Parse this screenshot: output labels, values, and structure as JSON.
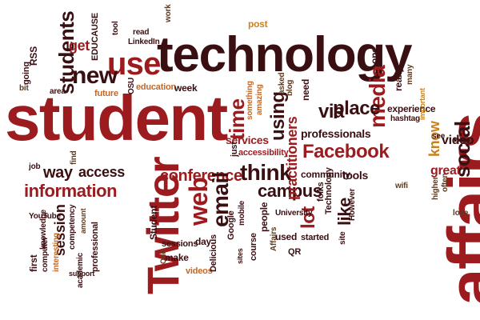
{
  "words": [
    {
      "text": "student"
    },
    {
      "text": "affairs"
    },
    {
      "text": "technology"
    },
    {
      "text": "Twitter"
    },
    {
      "text": "use"
    },
    {
      "text": "students"
    },
    {
      "text": "social"
    },
    {
      "text": "media"
    },
    {
      "text": "web"
    },
    {
      "text": "think"
    },
    {
      "text": "time"
    },
    {
      "text": "Facebook"
    },
    {
      "text": "conference"
    },
    {
      "text": "information"
    },
    {
      "text": "email"
    },
    {
      "text": "campus"
    },
    {
      "text": "new"
    },
    {
      "text": "via"
    },
    {
      "text": "place"
    },
    {
      "text": "using"
    },
    {
      "text": "lot"
    },
    {
      "text": "way"
    },
    {
      "text": "access"
    },
    {
      "text": "session"
    },
    {
      "text": "like"
    },
    {
      "text": "practitioners"
    },
    {
      "text": "professionals"
    },
    {
      "text": "get"
    },
    {
      "text": "know"
    },
    {
      "text": "great"
    },
    {
      "text": "video"
    },
    {
      "text": "tools"
    },
    {
      "text": "community"
    },
    {
      "text": "post"
    },
    {
      "text": "EDUCAUSE"
    },
    {
      "text": "LinkedIn"
    },
    {
      "text": "read"
    },
    {
      "text": "work"
    },
    {
      "text": "tool"
    },
    {
      "text": "RSS"
    },
    {
      "text": "going"
    },
    {
      "text": "bit"
    },
    {
      "text": "area"
    },
    {
      "text": "future"
    },
    {
      "text": "education"
    },
    {
      "text": "week"
    },
    {
      "text": "OSU"
    },
    {
      "text": "one"
    },
    {
      "text": "blog"
    },
    {
      "text": "asked"
    },
    {
      "text": "something"
    },
    {
      "text": "amazing"
    },
    {
      "text": "services"
    },
    {
      "text": "accessibility"
    },
    {
      "text": "just"
    },
    {
      "text": "really"
    },
    {
      "text": "many"
    },
    {
      "text": "experience"
    },
    {
      "text": "hashtag"
    },
    {
      "text": "important"
    },
    {
      "text": "see"
    },
    {
      "text": "wifi"
    },
    {
      "text": "higher"
    },
    {
      "text": "often"
    },
    {
      "text": "love"
    },
    {
      "text": "job"
    },
    {
      "text": "find"
    },
    {
      "text": "competency"
    },
    {
      "text": "amount"
    },
    {
      "text": "knowledge"
    },
    {
      "text": "YouTube"
    },
    {
      "text": "first"
    },
    {
      "text": "computer"
    },
    {
      "text": "interesting"
    },
    {
      "text": "academic"
    },
    {
      "text": "professional"
    },
    {
      "text": "support"
    },
    {
      "text": "Student"
    },
    {
      "text": "One"
    },
    {
      "text": "make"
    },
    {
      "text": "sessions"
    },
    {
      "text": "day"
    },
    {
      "text": "videos"
    },
    {
      "text": "Delicious"
    },
    {
      "text": "Google"
    },
    {
      "text": "mobile"
    },
    {
      "text": "sites"
    },
    {
      "text": "course"
    },
    {
      "text": "people"
    },
    {
      "text": "Affairs"
    },
    {
      "text": "University"
    },
    {
      "text": "used"
    },
    {
      "text": "QR"
    },
    {
      "text": "started"
    },
    {
      "text": "folks"
    },
    {
      "text": "Technology"
    },
    {
      "text": "site"
    },
    {
      "text": "However"
    },
    {
      "text": "need"
    }
  ]
}
